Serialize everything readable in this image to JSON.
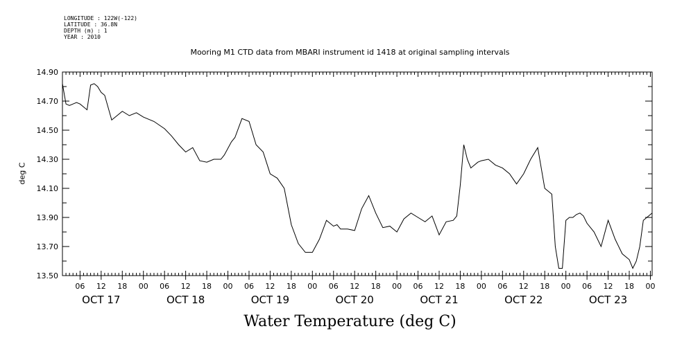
{
  "metadata": {
    "longitude": "LONGITUDE : 122W(-122)",
    "latitude": "LATITUDE : 36.8N",
    "depth": "DEPTH (m) : 1",
    "year": "YEAR : 2010"
  },
  "chart_data": {
    "type": "line",
    "title": "Mooring M1 CTD data from MBARI instrument id 1418 at original sampling intervals",
    "xlabel": "Water Temperature (deg C)",
    "ylabel": "deg C",
    "ylim": [
      13.5,
      14.9
    ],
    "xlim": [
      "2010-10-17T01:00",
      "2010-10-24T00:30"
    ],
    "y_ticks": [
      "13.50",
      "13.70",
      "13.90",
      "14.10",
      "14.30",
      "14.50",
      "14.70",
      "14.90"
    ],
    "x_hour_ticks": [
      "06",
      "12",
      "18",
      "00",
      "06",
      "12",
      "18",
      "00",
      "06",
      "12",
      "18",
      "00",
      "06",
      "12",
      "18",
      "00",
      "06",
      "12",
      "18",
      "00",
      "06",
      "12",
      "18",
      "00",
      "06",
      "12",
      "18",
      "00"
    ],
    "x_day_labels": [
      "OCT 17",
      "OCT 18",
      "OCT 19",
      "OCT 20",
      "OCT 21",
      "OCT 22",
      "OCT 23"
    ],
    "grid": false,
    "series": [
      {
        "color": "#000000",
        "x": [
          "2010-10-17T01:00",
          "2010-10-17T02:00",
          "2010-10-17T03:00",
          "2010-10-17T04:00",
          "2010-10-17T05:00",
          "2010-10-17T06:00",
          "2010-10-17T07:00",
          "2010-10-17T08:00",
          "2010-10-17T09:00",
          "2010-10-17T10:00",
          "2010-10-17T11:00",
          "2010-10-17T12:00",
          "2010-10-17T13:00",
          "2010-10-17T15:00",
          "2010-10-17T16:00",
          "2010-10-17T18:00",
          "2010-10-17T20:00",
          "2010-10-17T22:00",
          "2010-10-18T00:00",
          "2010-10-18T03:00",
          "2010-10-18T06:00",
          "2010-10-18T08:00",
          "2010-10-18T10:00",
          "2010-10-18T12:00",
          "2010-10-18T14:00",
          "2010-10-18T16:00",
          "2010-10-18T18:00",
          "2010-10-18T20:00",
          "2010-10-18T22:00",
          "2010-10-18T23:00",
          "2010-10-19T01:00",
          "2010-10-19T02:00",
          "2010-10-19T04:00",
          "2010-10-19T06:00",
          "2010-10-19T08:00",
          "2010-10-19T10:00",
          "2010-10-19T12:00",
          "2010-10-19T14:00",
          "2010-10-19T16:00",
          "2010-10-19T18:00",
          "2010-10-19T20:00",
          "2010-10-19T22:00",
          "2010-10-20T00:00",
          "2010-10-20T02:00",
          "2010-10-20T04:00",
          "2010-10-20T06:00",
          "2010-10-20T07:00",
          "2010-10-20T08:00",
          "2010-10-20T10:00",
          "2010-10-20T12:00",
          "2010-10-20T14:00",
          "2010-10-20T16:00",
          "2010-10-20T18:00",
          "2010-10-20T20:00",
          "2010-10-20T22:00",
          "2010-10-21T00:00",
          "2010-10-21T02:00",
          "2010-10-21T04:00",
          "2010-10-21T06:00",
          "2010-10-21T08:00",
          "2010-10-21T10:00",
          "2010-10-21T12:00",
          "2010-10-21T14:00",
          "2010-10-21T16:00",
          "2010-10-21T17:00",
          "2010-10-21T18:00",
          "2010-10-21T19:00",
          "2010-10-21T20:00",
          "2010-10-21T21:00",
          "2010-10-21T23:00",
          "2010-10-22T00:00",
          "2010-10-22T02:00",
          "2010-10-22T04:00",
          "2010-10-22T06:00",
          "2010-10-22T08:00",
          "2010-10-22T10:00",
          "2010-10-22T12:00",
          "2010-10-22T14:00",
          "2010-10-22T16:00",
          "2010-10-22T18:00",
          "2010-10-22T20:00",
          "2010-10-22T21:00",
          "2010-10-22T22:00",
          "2010-10-22T23:00",
          "2010-10-23T00:00",
          "2010-10-23T01:00",
          "2010-10-23T02:00",
          "2010-10-23T03:00",
          "2010-10-23T04:00",
          "2010-10-23T05:00",
          "2010-10-23T06:00",
          "2010-10-23T08:00",
          "2010-10-23T10:00",
          "2010-10-23T12:00",
          "2010-10-23T14:00",
          "2010-10-23T16:00",
          "2010-10-23T18:00",
          "2010-10-23T19:00",
          "2010-10-23T20:00",
          "2010-10-23T21:00",
          "2010-10-23T22:00",
          "2010-10-23T23:00",
          "2010-10-24T00:00",
          "2010-10-24T00:30"
        ],
        "values": [
          14.82,
          14.68,
          14.67,
          14.68,
          14.69,
          14.68,
          14.66,
          14.64,
          14.81,
          14.82,
          14.8,
          14.76,
          14.74,
          14.57,
          14.59,
          14.63,
          14.6,
          14.62,
          14.59,
          14.56,
          14.51,
          14.46,
          14.4,
          14.35,
          14.38,
          14.29,
          14.28,
          14.3,
          14.3,
          14.33,
          14.42,
          14.45,
          14.58,
          14.56,
          14.4,
          14.35,
          14.2,
          14.17,
          14.1,
          13.85,
          13.72,
          13.66,
          13.66,
          13.75,
          13.88,
          13.84,
          13.85,
          13.82,
          13.82,
          13.81,
          13.96,
          14.05,
          13.93,
          13.83,
          13.84,
          13.8,
          13.89,
          13.93,
          13.9,
          13.87,
          13.91,
          13.78,
          13.87,
          13.88,
          13.91,
          14.12,
          14.4,
          14.3,
          14.24,
          14.28,
          14.29,
          14.3,
          14.26,
          14.24,
          14.2,
          14.13,
          14.2,
          14.3,
          14.38,
          14.1,
          14.06,
          13.7,
          13.55,
          13.55,
          13.88,
          13.9,
          13.9,
          13.92,
          13.93,
          13.91,
          13.86,
          13.8,
          13.7,
          13.88,
          13.75,
          13.65,
          13.61,
          13.55,
          13.6,
          13.7,
          13.88,
          13.9,
          13.92,
          13.93
        ]
      }
    ]
  }
}
